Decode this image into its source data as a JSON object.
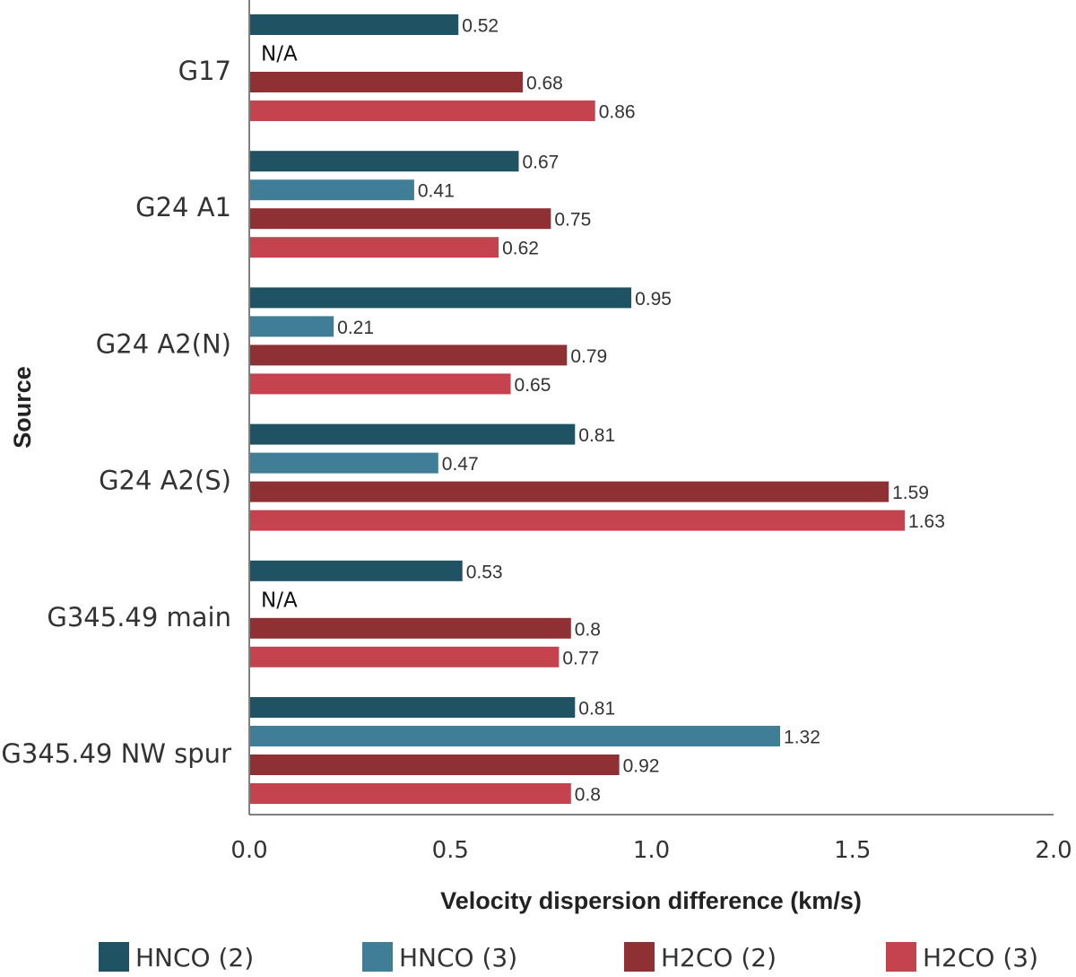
{
  "chart_data": {
    "type": "bar",
    "orientation": "horizontal",
    "categories": [
      "G17",
      "G24 A1",
      "G24 A2(N)",
      "G24 A2(S)",
      "G345.49 main",
      "G345.49 NW spur"
    ],
    "series": [
      {
        "name": "HNCO (2)",
        "color": "#1f5262",
        "values": [
          0.52,
          0.67,
          0.95,
          0.81,
          0.53,
          0.81
        ],
        "labels": [
          "0.52",
          "0.67",
          "0.95",
          "0.81",
          "0.53",
          "0.81"
        ]
      },
      {
        "name": "HNCO (3)",
        "color": "#3f7e96",
        "values": [
          null,
          0.41,
          0.21,
          0.47,
          null,
          1.32
        ],
        "labels": [
          "N/A",
          "0.41",
          "0.21",
          "0.47",
          "N/A",
          "1.32"
        ]
      },
      {
        "name": "H2CO (2)",
        "color": "#8e3034",
        "values": [
          0.68,
          0.75,
          0.79,
          1.59,
          0.8,
          0.92
        ],
        "labels": [
          "0.68",
          "0.75",
          "0.79",
          "1.59",
          "0.8",
          "0.92"
        ]
      },
      {
        "name": "H2CO (3)",
        "color": "#c4434f",
        "values": [
          0.86,
          0.62,
          0.65,
          1.63,
          0.77,
          0.8
        ],
        "labels": [
          "0.86",
          "0.62",
          "0.65",
          "1.63",
          "0.77",
          "0.8"
        ]
      }
    ],
    "xlabel": "Velocity dispersion difference (km/s)",
    "ylabel": "Source",
    "xlim": [
      0.0,
      2.0
    ],
    "xticks": [
      "0.0",
      "0.5",
      "1.0",
      "1.5",
      "2.0"
    ],
    "legend_position": "bottom",
    "grid": false
  }
}
